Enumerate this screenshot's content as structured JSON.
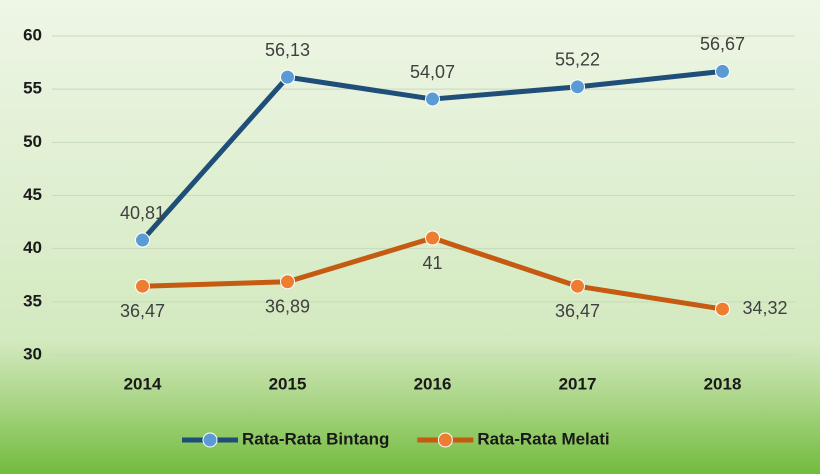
{
  "chart_data": {
    "type": "line",
    "categories": [
      "2014",
      "2015",
      "2016",
      "2017",
      "2018"
    ],
    "series": [
      {
        "name": "Rata-Rata Bintang",
        "color": "#1f4e79",
        "marker_color": "#5b9bd5",
        "label_position": "above",
        "values": [
          40.81,
          56.13,
          54.07,
          55.22,
          56.67
        ],
        "value_labels": [
          "40,81",
          "56,13",
          "54,07",
          "55,22",
          "56,67"
        ]
      },
      {
        "name": "Rata-Rata Melati",
        "color": "#c55a11",
        "marker_color": "#ed7d31",
        "label_position": "below",
        "values": [
          36.47,
          36.89,
          41,
          36.47,
          34.32
        ],
        "value_labels": [
          "36,47",
          "36,89",
          "41",
          "36,47",
          "34,32"
        ]
      }
    ],
    "ylim": [
      30,
      60
    ],
    "yticks": [
      30,
      35,
      40,
      45,
      50,
      55,
      60
    ],
    "grid": true,
    "legend": "bottom"
  }
}
